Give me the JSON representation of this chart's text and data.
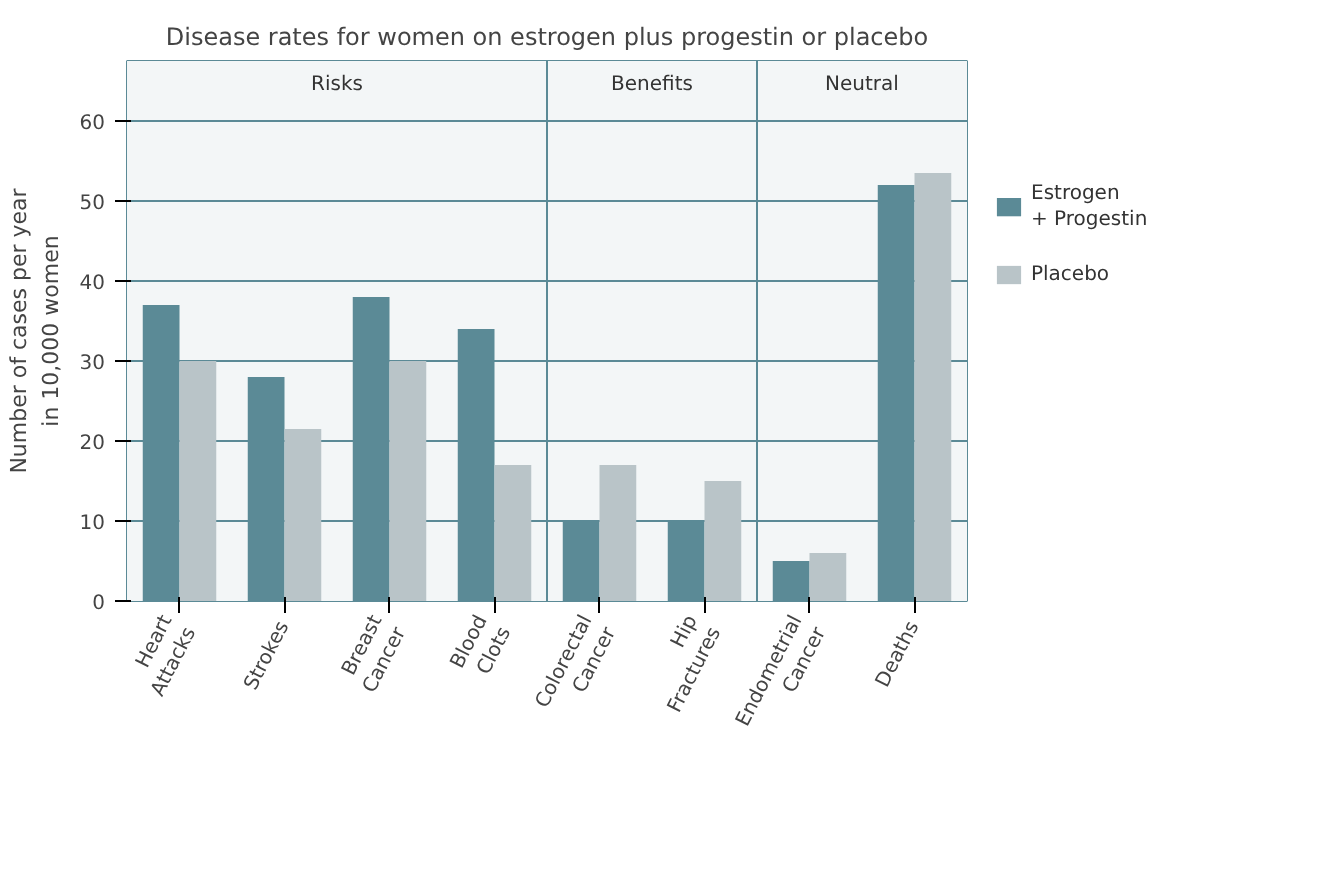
{
  "chart_data": {
    "type": "bar",
    "title": "Disease rates for women on estrogen plus progestin or placebo",
    "ylabel": "Number of cases per year\nin 10,000 women",
    "categories": [
      "Heart\nAttacks",
      "Strokes",
      "Breast\nCancer",
      "Blood\nClots",
      "Colorectal\nCancer",
      "Hip\nFractures",
      "Endometrial\nCancer",
      "Deaths"
    ],
    "series": [
      {
        "name": "Estrogen\n+ Progestin",
        "color": "#5b8a96",
        "values": [
          37,
          28,
          38,
          34,
          10,
          10,
          5,
          52
        ]
      },
      {
        "name": "Placebo",
        "color": "#b9c4c8",
        "values": [
          30,
          21.5,
          30,
          17,
          17,
          15,
          6,
          53.5
        ]
      }
    ],
    "bands": [
      {
        "axis": "x",
        "from": "Heart\nAttacks",
        "to": "Blood\nClots",
        "label": "Risks",
        "color": "#f3f6f7"
      },
      {
        "axis": "x",
        "from": "Colorectal\nCancer",
        "to": "Hip\nFractures",
        "label": "Benefits",
        "color": "#f3f6f7"
      },
      {
        "axis": "x",
        "from": "Endometrial\nCancer",
        "to": "Deaths",
        "label": "Neutral",
        "color": "#f3f6f7"
      }
    ],
    "ylim": [
      0,
      67.5
    ],
    "yticks": [
      0,
      10,
      20,
      30,
      40,
      50,
      60
    ],
    "grid": "y",
    "legend": "right"
  }
}
